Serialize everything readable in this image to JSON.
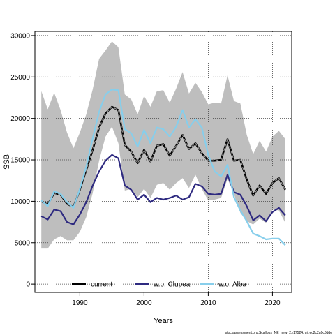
{
  "chart_data": {
    "type": "line",
    "xlabel": "Years",
    "ylabel": "SSB",
    "xlim": [
      1983,
      2023
    ],
    "ylim": [
      -1000,
      30500
    ],
    "x_ticks": [
      1990,
      2000,
      2010,
      2020
    ],
    "y_ticks": [
      0,
      5000,
      10000,
      15000,
      20000,
      25000,
      30000
    ],
    "grid": true,
    "legend_position": "bottom",
    "x": [
      1984,
      1985,
      1986,
      1987,
      1988,
      1989,
      1990,
      1991,
      1992,
      1993,
      1994,
      1995,
      1996,
      1997,
      1998,
      1999,
      2000,
      2001,
      2002,
      2003,
      2004,
      2005,
      2006,
      2007,
      2008,
      2009,
      2010,
      2011,
      2012,
      2013,
      2014,
      2015,
      2016,
      2017,
      2018,
      2019,
      2020,
      2021,
      2022
    ],
    "band": {
      "color": "#bebebe",
      "upper": [
        23300,
        21100,
        23100,
        21000,
        18300,
        16400,
        18300,
        20500,
        23500,
        27200,
        28200,
        29300,
        28600,
        22900,
        22300,
        20500,
        22700,
        21400,
        23300,
        23400,
        21900,
        23600,
        25600,
        23000,
        24300,
        23200,
        21700,
        21900,
        21800,
        25200,
        22100,
        21800,
        18000,
        15700,
        17300,
        16000,
        17800,
        18500,
        17500
      ],
      "lower": [
        4300,
        4300,
        5400,
        5800,
        5300,
        5300,
        6300,
        8100,
        11000,
        14900,
        17800,
        19000,
        17000,
        11300,
        11500,
        10500,
        11500,
        10400,
        12000,
        12200,
        11400,
        12200,
        12800,
        11600,
        13200,
        11500,
        10100,
        10200,
        10400,
        12700,
        10900,
        8600,
        7600,
        7200,
        7900,
        7400,
        9000,
        8900,
        7400
      ]
    },
    "series": [
      {
        "name": "current",
        "color": "#000000",
        "style": "dashed-on-gray",
        "values": [
          10000,
          9600,
          11000,
          10800,
          9700,
          9300,
          11400,
          13800,
          16200,
          18900,
          20600,
          21400,
          21000,
          16800,
          16000,
          14600,
          16200,
          14800,
          16700,
          16900,
          15500,
          16700,
          18000,
          16300,
          17000,
          15800,
          14900,
          14900,
          15000,
          17500,
          14900,
          15000,
          12600,
          10700,
          11900,
          10900,
          12200,
          12800,
          11400
        ]
      },
      {
        "name": "w.o. Clupea",
        "color": "#2e2a80",
        "style": "solid",
        "values": [
          8200,
          7800,
          9000,
          8800,
          7500,
          7200,
          8400,
          9900,
          11900,
          13600,
          14900,
          15600,
          15200,
          11900,
          11400,
          10200,
          10800,
          9900,
          10400,
          10200,
          10400,
          10700,
          10200,
          10500,
          12100,
          11800,
          10900,
          10800,
          10900,
          13200,
          11100,
          10800,
          9400,
          7700,
          8300,
          7600,
          8700,
          9200,
          8300
        ]
      },
      {
        "name": "w.o. Alba",
        "color": "#87ceeb",
        "style": "solid",
        "values": [
          10100,
          9400,
          11200,
          10900,
          9900,
          9200,
          11500,
          14200,
          17600,
          20800,
          22900,
          23500,
          23400,
          18700,
          18200,
          16600,
          18600,
          17000,
          18900,
          18700,
          17800,
          19000,
          21000,
          18900,
          19900,
          18900,
          15600,
          13600,
          13000,
          14400,
          10500,
          8900,
          7600,
          6100,
          5800,
          5400,
          5500,
          5500,
          4700
        ]
      }
    ]
  },
  "footer": {
    "note": "stockassessment.org,Scallops_NE_new_2,r17524, git:ec2c2a0c6dde"
  }
}
